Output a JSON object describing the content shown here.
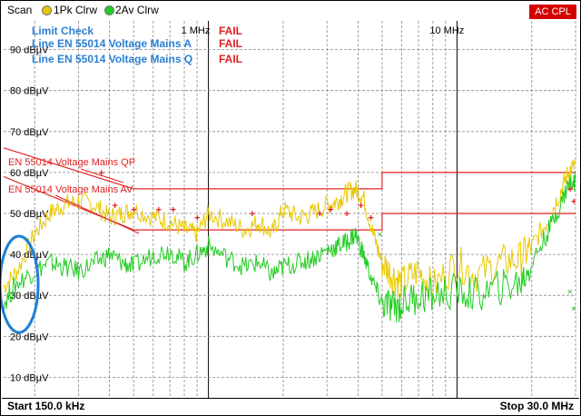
{
  "header": {
    "mode_label": "Scan",
    "trace1_label": "1Pk Clrw",
    "trace2_label": "2Av Clrw",
    "status_badge": "AC CPL"
  },
  "limit_check": {
    "title": "Limit Check",
    "lines": [
      {
        "name": "Line EN 55014 Voltage Mains A",
        "result": "FAIL"
      },
      {
        "name": "Line EN 55014 Voltage Mains Q",
        "result": "FAIL"
      }
    ],
    "marker_result": "FAIL"
  },
  "footer": {
    "start_label": "Start 150.0 kHz",
    "stop_label": "Stop 30.0 MHz"
  },
  "colors": {
    "trace1": "#e8c800",
    "trace2": "#22cc22",
    "limit": "#e02020",
    "status_badge": "#d40000",
    "highlight_ellipse": "#1e7fd6",
    "label_blue": "#2a7fd4"
  },
  "chart_data": {
    "type": "line",
    "x_scale": "log",
    "xlim": [
      0.15,
      30.0
    ],
    "x_unit": "MHz",
    "ylim": [
      5,
      97
    ],
    "y_unit": "dBµV",
    "x_tick_labels": [
      {
        "x": 1,
        "label": "1 MHz"
      },
      {
        "x": 10,
        "label": "10 MHz"
      }
    ],
    "y_tick_labels": [
      {
        "y": 90,
        "label": "90 dBµV"
      },
      {
        "y": 80,
        "label": "80 dBµV"
      },
      {
        "y": 70,
        "label": "70 dBµV"
      },
      {
        "y": 60,
        "label": "60 dBµV"
      },
      {
        "y": 50,
        "label": "50 dBµV"
      },
      {
        "y": 40,
        "label": "40 dBµV"
      },
      {
        "y": 30,
        "label": "30 dBµV"
      },
      {
        "y": 20,
        "label": "20 dBµV"
      },
      {
        "y": 10,
        "label": "10 dBµV"
      }
    ],
    "grid": true,
    "series": [
      {
        "name": "1Pk Clrw",
        "color": "#e8c800",
        "x": [
          0.15,
          0.17,
          0.2,
          0.23,
          0.26,
          0.3,
          0.35,
          0.4,
          0.45,
          0.5,
          0.6,
          0.7,
          0.8,
          0.9,
          1.0,
          1.2,
          1.4,
          1.6,
          1.8,
          2.0,
          2.3,
          2.6,
          3.0,
          3.3,
          3.6,
          3.9,
          4.2,
          4.6,
          5.0,
          5.5,
          6.0,
          7.0,
          8.0,
          10.0,
          12.0,
          15.0,
          18.0,
          20.0,
          23.0,
          26.0,
          28.0,
          30.0
        ],
        "y": [
          32,
          36,
          45,
          50,
          52,
          53,
          52,
          49,
          50,
          51,
          49,
          48,
          46,
          45,
          50,
          48,
          46,
          48,
          45,
          51,
          49,
          50,
          52,
          53,
          55,
          56,
          54,
          45,
          38,
          35,
          33,
          36,
          32,
          38,
          35,
          38,
          39,
          42,
          48,
          55,
          60,
          62
        ]
      },
      {
        "name": "2Av Clrw",
        "color": "#22cc22",
        "x": [
          0.15,
          0.17,
          0.2,
          0.23,
          0.26,
          0.3,
          0.35,
          0.4,
          0.45,
          0.5,
          0.6,
          0.7,
          0.8,
          0.9,
          1.0,
          1.2,
          1.4,
          1.6,
          1.8,
          2.0,
          2.3,
          2.6,
          3.0,
          3.3,
          3.6,
          3.9,
          4.2,
          4.6,
          5.0,
          5.5,
          6.0,
          7.0,
          8.0,
          10.0,
          12.0,
          15.0,
          18.0,
          20.0,
          23.0,
          26.0,
          28.0,
          30.0
        ],
        "y": [
          28,
          33,
          36,
          38,
          37,
          36,
          38,
          40,
          38,
          37,
          40,
          41,
          38,
          40,
          42,
          39,
          37,
          38,
          35,
          37,
          38,
          39,
          41,
          42,
          43,
          45,
          40,
          33,
          28,
          27,
          28,
          30,
          30,
          31,
          30,
          32,
          33,
          38,
          45,
          52,
          57,
          58
        ]
      }
    ],
    "limit_lines": [
      {
        "name": "EN 55014 Voltage Mains QP",
        "x": [
          0.15,
          0.5,
          5.0,
          5.0,
          30.0
        ],
        "y": [
          66,
          56,
          56,
          60,
          60
        ]
      },
      {
        "name": "EN 55014 Voltage Mains AV",
        "x": [
          0.15,
          0.5,
          5.0,
          5.0,
          30.0
        ],
        "y": [
          59,
          46,
          46,
          50,
          50
        ]
      }
    ],
    "qp_markers": {
      "x": [
        0.37,
        0.42,
        0.5,
        0.63,
        0.72,
        0.9,
        1.5,
        2.8,
        3.1,
        3.6,
        4.1,
        4.5,
        28.5,
        29.5
      ],
      "y": [
        60,
        52,
        51,
        51,
        51,
        49,
        50,
        50,
        51,
        50,
        52,
        49,
        56,
        53
      ]
    },
    "av_markers": {
      "x": [
        4.9,
        28.5,
        29.5
      ],
      "y": [
        45,
        31,
        27
      ]
    },
    "trace_labels": [
      "EN 55014 Voltage Mains QP",
      "EN 55014 Voltage Mains AV"
    ]
  }
}
